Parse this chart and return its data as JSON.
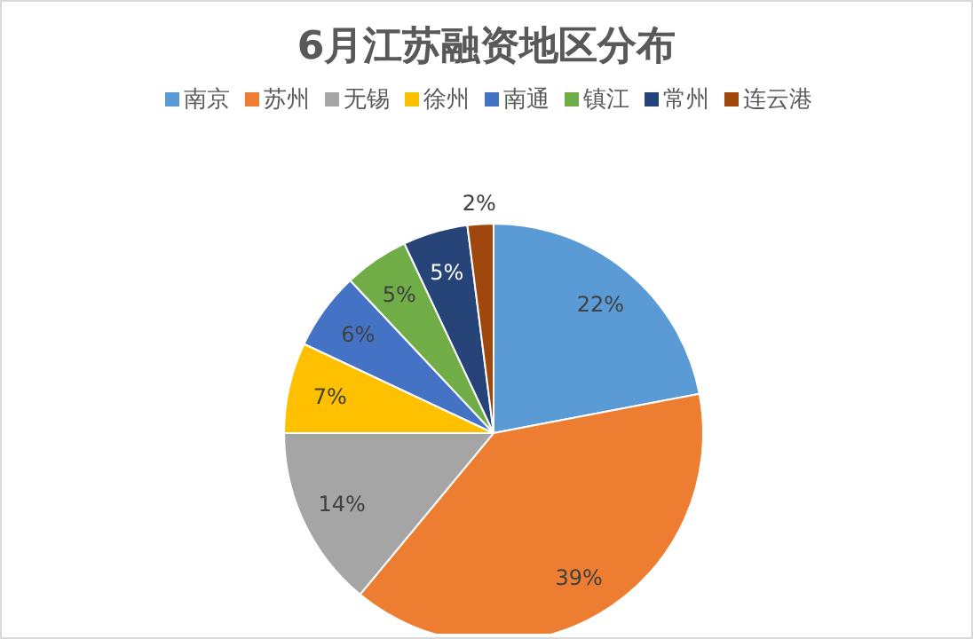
{
  "chart_data": {
    "type": "pie",
    "title": "6月江苏融资地区分布",
    "categories": [
      "南京",
      "苏州",
      "无锡",
      "徐州",
      "南通",
      "镇江",
      "常州",
      "连云港"
    ],
    "values": [
      22,
      39,
      14,
      7,
      6,
      5,
      5,
      2
    ],
    "colors": [
      "#5b9bd5",
      "#ed7d31",
      "#a5a5a5",
      "#ffc000",
      "#4472c4",
      "#70ad47",
      "#264478",
      "#9e480e"
    ],
    "value_labels": [
      "22%",
      "39%",
      "14%",
      "7%",
      "6%",
      "5%",
      "5%",
      "2%"
    ],
    "legend": "top"
  }
}
